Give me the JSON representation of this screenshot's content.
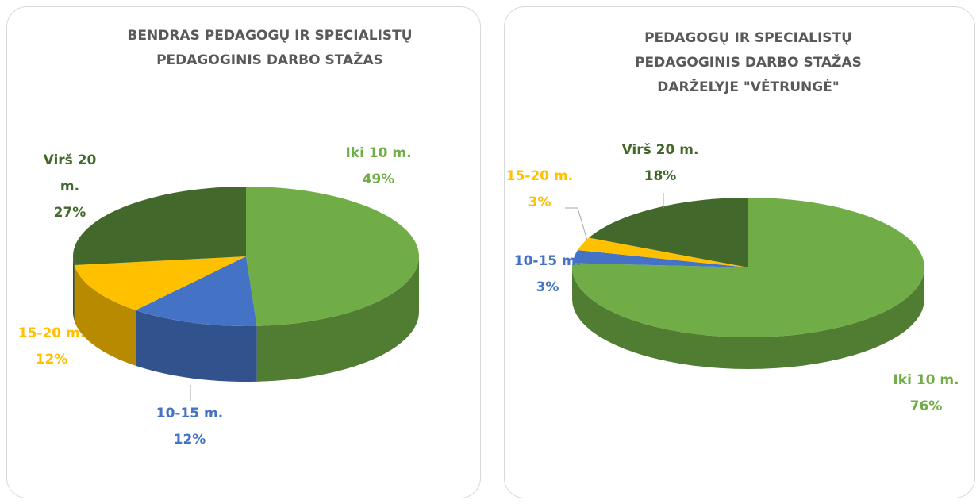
{
  "chart_data": [
    {
      "type": "pie",
      "title": "BENDRAS PEDAGOGŲ IR SPECIALISTŲ PEDAGOGINIS DARBO STAŽAS",
      "categories": [
        "Iki 10 m.",
        "10-15 m.",
        "15-20 m.",
        "Virš 20 m."
      ],
      "values": [
        49,
        12,
        12,
        27
      ],
      "value_labels": [
        "49%",
        "12%",
        "12%",
        "27%"
      ],
      "colors": [
        "#70ad47",
        "#4472c4",
        "#ffc000",
        "#43682b"
      ]
    },
    {
      "type": "pie",
      "title": "PEDAGOGŲ IR SPECIALISTŲ PEDAGOGINIS DARBO STAŽAS DARŽELYJE \"VĖTRUNGĖ\"",
      "categories": [
        "Iki 10 m.",
        "10-15 m.",
        "15-20 m.",
        "Virš 20 m."
      ],
      "values": [
        76,
        3,
        3,
        18
      ],
      "value_labels": [
        "76%",
        "3%",
        "3%",
        "18%"
      ],
      "colors": [
        "#70ad47",
        "#4472c4",
        "#ffc000",
        "#43682b"
      ]
    }
  ]
}
